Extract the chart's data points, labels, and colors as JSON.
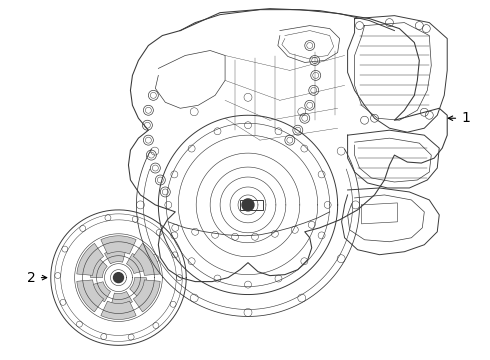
{
  "background_color": "#ffffff",
  "label_1": "1",
  "label_2": "2",
  "line_color": "#3a3a3a",
  "line_color_light": "#555555",
  "font_size": 10,
  "fig_width": 4.9,
  "fig_height": 3.6,
  "dpi": 100,
  "img_extent": [
    0,
    490,
    0,
    360
  ]
}
